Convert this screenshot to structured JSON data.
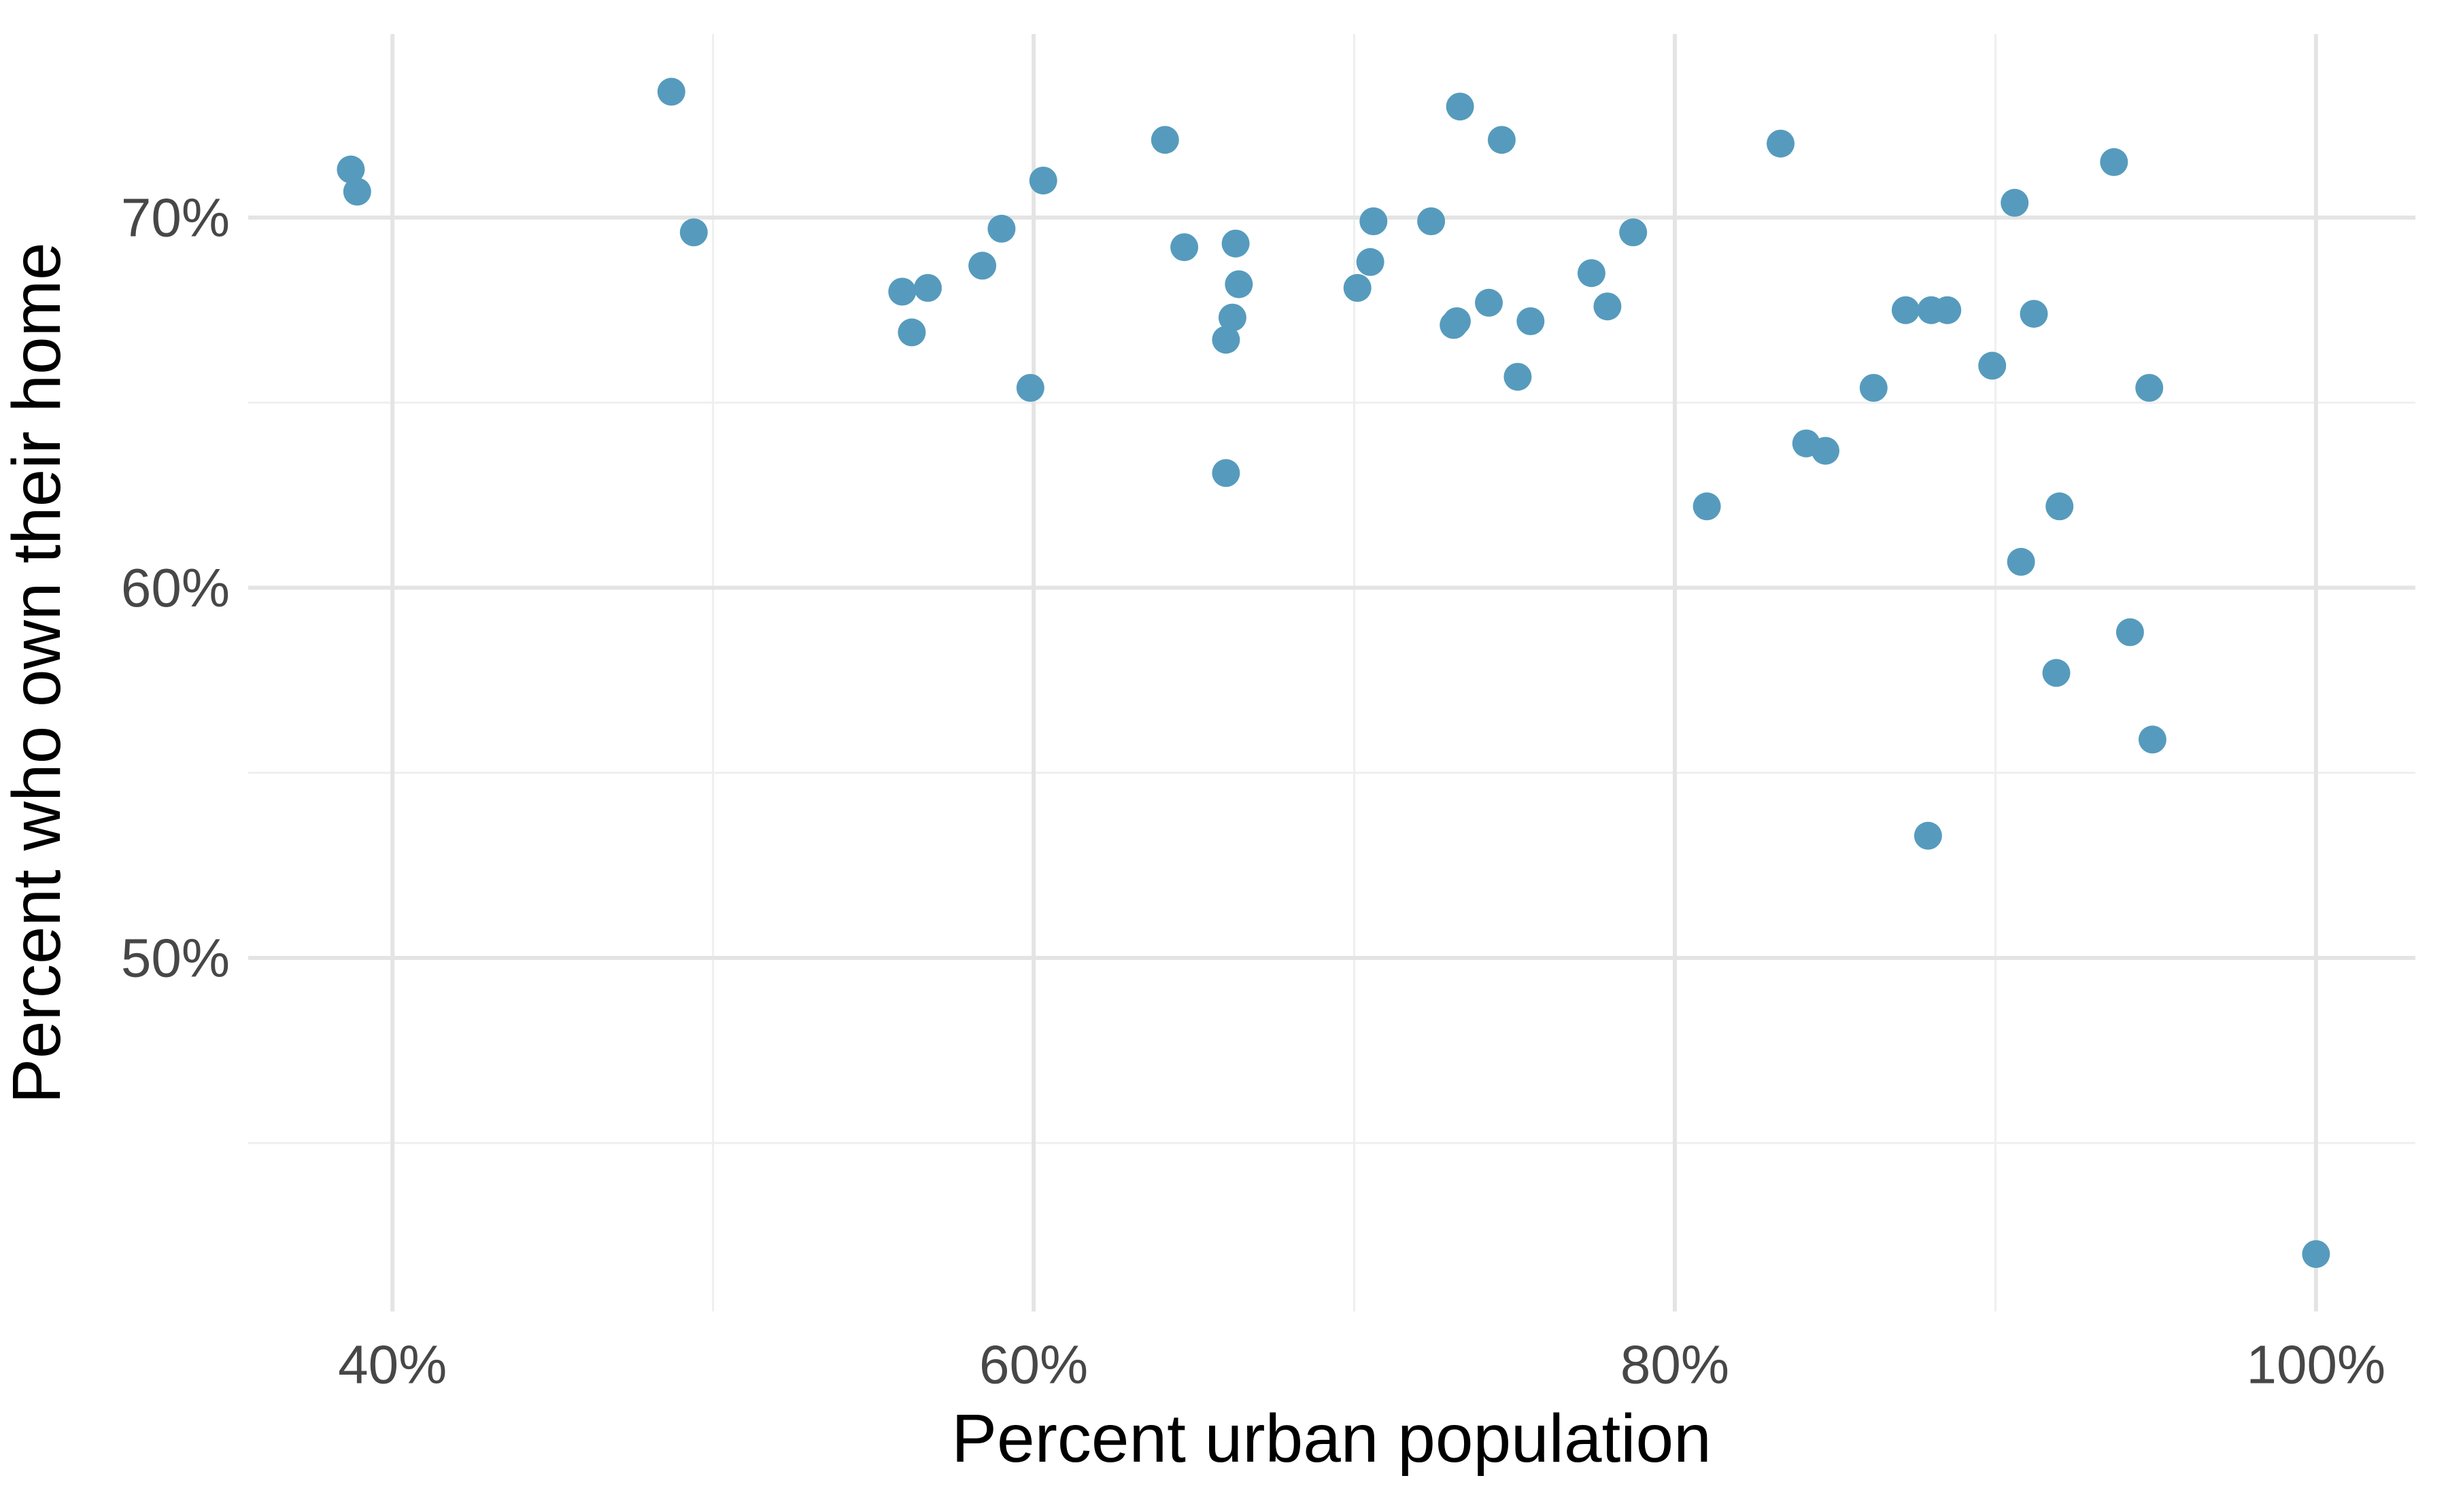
{
  "chart_data": {
    "type": "scatter",
    "title": "",
    "xlabel": "Percent urban population",
    "ylabel": "Percent who own their home",
    "legend": "none",
    "grid": "major+minor",
    "xlim": [
      35.5,
      103.1
    ],
    "ylim": [
      40.45,
      74.96
    ],
    "x_ticks": [
      {
        "value": 40,
        "label": "40%"
      },
      {
        "value": 60,
        "label": "60%"
      },
      {
        "value": 80,
        "label": "80%"
      },
      {
        "value": 100,
        "label": "100%"
      }
    ],
    "y_ticks": [
      {
        "value": 70,
        "label": "70%"
      },
      {
        "value": 60,
        "label": "60%"
      },
      {
        "value": 50,
        "label": "50%"
      }
    ],
    "x_minor_gridlines": [
      50,
      70,
      90
    ],
    "y_minor_gridlines": [
      45,
      55,
      65
    ],
    "colors": {
      "point": "#569BBD",
      "major_grid": "#E4E4E4",
      "minor_grid": "#EFEFEF",
      "tick_label": "#474747",
      "axis_title": "#000000",
      "background": "#FFFFFF"
    },
    "points": [
      [
        38.7,
        71.3
      ],
      [
        38.9,
        70.7
      ],
      [
        48.7,
        73.4
      ],
      [
        49.4,
        69.6
      ],
      [
        55.9,
        68.0
      ],
      [
        56.2,
        66.9
      ],
      [
        56.7,
        68.1
      ],
      [
        58.4,
        68.7
      ],
      [
        59.0,
        69.7
      ],
      [
        59.9,
        65.4
      ],
      [
        60.3,
        71.0
      ],
      [
        64.1,
        72.1
      ],
      [
        64.7,
        69.2
      ],
      [
        66.0,
        63.1
      ],
      [
        66.0,
        66.7
      ],
      [
        66.2,
        67.3
      ],
      [
        66.3,
        69.3
      ],
      [
        66.4,
        68.2
      ],
      [
        70.1,
        68.1
      ],
      [
        70.5,
        68.8
      ],
      [
        70.6,
        69.9
      ],
      [
        72.4,
        69.9
      ],
      [
        73.1,
        67.1
      ],
      [
        73.2,
        67.2
      ],
      [
        73.3,
        73.0
      ],
      [
        74.2,
        67.7
      ],
      [
        74.6,
        72.1
      ],
      [
        75.1,
        65.7
      ],
      [
        75.5,
        67.2
      ],
      [
        77.4,
        68.5
      ],
      [
        77.9,
        67.6
      ],
      [
        78.7,
        69.6
      ],
      [
        81.0,
        62.2
      ],
      [
        83.3,
        72.0
      ],
      [
        84.1,
        63.9
      ],
      [
        84.7,
        63.7
      ],
      [
        86.2,
        65.4
      ],
      [
        87.2,
        67.5
      ],
      [
        87.9,
        53.3
      ],
      [
        88.0,
        67.5
      ],
      [
        88.5,
        67.5
      ],
      [
        89.9,
        66.0
      ],
      [
        90.6,
        70.4
      ],
      [
        90.8,
        60.7
      ],
      [
        91.2,
        67.4
      ],
      [
        91.9,
        57.7
      ],
      [
        92.0,
        62.2
      ],
      [
        93.7,
        71.5
      ],
      [
        94.2,
        58.8
      ],
      [
        94.8,
        65.4
      ],
      [
        94.9,
        55.9
      ],
      [
        100.0,
        42.0
      ]
    ]
  }
}
